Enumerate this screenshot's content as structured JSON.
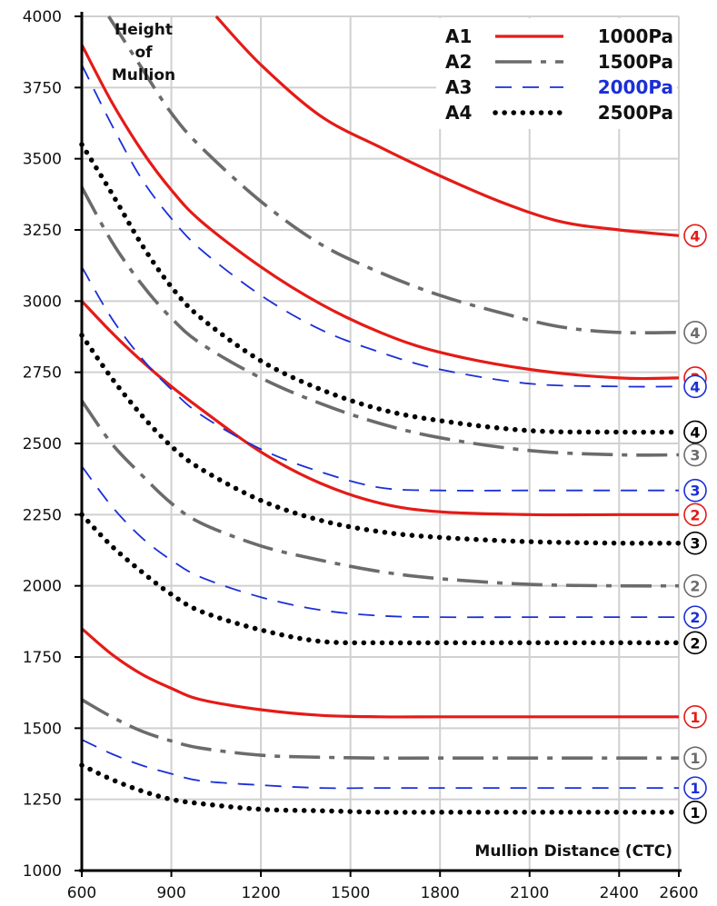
{
  "chart_data": {
    "type": "line",
    "xlabel": "Mullion Distance (CTC)",
    "ylabel_lines": [
      "Height",
      "of",
      "Mullion"
    ],
    "xlim": [
      600,
      2600
    ],
    "ylim": [
      1000,
      4000
    ],
    "x_ticks": [
      600,
      900,
      1200,
      1500,
      1800,
      2100,
      2400,
      2600
    ],
    "y_ticks": [
      1000,
      1250,
      1500,
      1750,
      2000,
      2250,
      2500,
      2750,
      3000,
      3250,
      3500,
      3750,
      4000
    ],
    "grid": true,
    "legend_position": "top-right",
    "legend": [
      {
        "name": "A1",
        "value": "1000Pa",
        "color": "#e41b17",
        "style": "solid"
      },
      {
        "name": "A2",
        "value": "1500Pa",
        "color": "#6b6b6b",
        "style": "dashdot"
      },
      {
        "name": "A3",
        "value": "2000Pa",
        "color": "#1a2fd6",
        "style": "dashed"
      },
      {
        "name": "A4",
        "value": "2500Pa",
        "color": "#000000",
        "style": "dotted"
      }
    ],
    "series": [
      {
        "group": "A1",
        "label": "1",
        "x": [
          600,
          700,
          800,
          900,
          1000,
          1200,
          1400,
          1600,
          1800,
          2100,
          2400,
          2600
        ],
        "y": [
          1850,
          1760,
          1690,
          1640,
          1600,
          1565,
          1545,
          1540,
          1540,
          1540,
          1540,
          1540
        ]
      },
      {
        "group": "A1",
        "label": "2",
        "x": [
          600,
          700,
          800,
          900,
          1000,
          1200,
          1400,
          1600,
          1800,
          2100,
          2400,
          2600
        ],
        "y": [
          3000,
          2890,
          2790,
          2700,
          2620,
          2470,
          2360,
          2290,
          2260,
          2250,
          2250,
          2250
        ]
      },
      {
        "group": "A1",
        "label": "3",
        "x": [
          600,
          700,
          800,
          900,
          1000,
          1200,
          1400,
          1600,
          1800,
          2100,
          2400,
          2600
        ],
        "y": [
          3900,
          3700,
          3530,
          3390,
          3280,
          3120,
          2990,
          2890,
          2820,
          2760,
          2730,
          2730
        ]
      },
      {
        "group": "A1",
        "label": "4",
        "x": [
          1050,
          1200,
          1400,
          1600,
          1800,
          2000,
          2200,
          2400,
          2600
        ],
        "y": [
          4000,
          3830,
          3650,
          3540,
          3440,
          3350,
          3280,
          3250,
          3230
        ]
      },
      {
        "group": "A2",
        "label": "1",
        "x": [
          600,
          700,
          800,
          900,
          1000,
          1200,
          1400,
          1600,
          1800,
          2100,
          2400,
          2600
        ],
        "y": [
          1600,
          1540,
          1490,
          1455,
          1430,
          1405,
          1398,
          1395,
          1395,
          1395,
          1395,
          1395
        ]
      },
      {
        "group": "A2",
        "label": "2",
        "x": [
          600,
          700,
          800,
          900,
          1000,
          1200,
          1400,
          1600,
          1800,
          2100,
          2400,
          2600
        ],
        "y": [
          2650,
          2500,
          2390,
          2290,
          2220,
          2140,
          2090,
          2050,
          2025,
          2005,
          2000,
          2000
        ]
      },
      {
        "group": "A2",
        "label": "3",
        "x": [
          600,
          700,
          800,
          900,
          1000,
          1200,
          1400,
          1600,
          1800,
          2100,
          2400,
          2600
        ],
        "y": [
          3400,
          3210,
          3060,
          2940,
          2850,
          2730,
          2640,
          2570,
          2520,
          2475,
          2460,
          2460
        ]
      },
      {
        "group": "A2",
        "label": "4",
        "x": [
          690,
          800,
          900,
          1000,
          1200,
          1400,
          1600,
          1800,
          2000,
          2200,
          2400,
          2600
        ],
        "y": [
          4000,
          3820,
          3660,
          3540,
          3350,
          3200,
          3100,
          3020,
          2960,
          2910,
          2890,
          2890
        ]
      },
      {
        "group": "A3",
        "label": "1",
        "x": [
          600,
          700,
          800,
          900,
          1000,
          1200,
          1400,
          1600,
          1800,
          2100,
          2400,
          2600
        ],
        "y": [
          1460,
          1410,
          1370,
          1340,
          1315,
          1300,
          1290,
          1290,
          1290,
          1290,
          1290,
          1290
        ]
      },
      {
        "group": "A3",
        "label": "2",
        "x": [
          600,
          700,
          800,
          900,
          1000,
          1200,
          1400,
          1600,
          1800,
          2100,
          2400,
          2600
        ],
        "y": [
          2420,
          2280,
          2170,
          2090,
          2030,
          1960,
          1915,
          1895,
          1890,
          1890,
          1890,
          1890
        ]
      },
      {
        "group": "A3",
        "label": "3",
        "x": [
          600,
          700,
          800,
          900,
          1000,
          1200,
          1400,
          1600,
          1800,
          2100,
          2400,
          2600
        ],
        "y": [
          3120,
          2940,
          2800,
          2690,
          2600,
          2480,
          2400,
          2345,
          2335,
          2335,
          2335,
          2335
        ]
      },
      {
        "group": "A3",
        "label": "4",
        "x": [
          600,
          700,
          800,
          900,
          1000,
          1200,
          1400,
          1600,
          1800,
          2100,
          2400,
          2600
        ],
        "y": [
          3830,
          3620,
          3430,
          3290,
          3180,
          3020,
          2900,
          2820,
          2760,
          2710,
          2700,
          2700
        ]
      },
      {
        "group": "A4",
        "label": "1",
        "x": [
          600,
          700,
          800,
          900,
          1000,
          1200,
          1400,
          1600,
          1800,
          2100,
          2400,
          2600
        ],
        "y": [
          1370,
          1320,
          1280,
          1250,
          1235,
          1215,
          1210,
          1205,
          1205,
          1205,
          1205,
          1205
        ]
      },
      {
        "group": "A4",
        "label": "2",
        "x": [
          600,
          700,
          800,
          900,
          1000,
          1200,
          1400,
          1600,
          1800,
          2100,
          2400,
          2600
        ],
        "y": [
          2250,
          2140,
          2050,
          1970,
          1910,
          1845,
          1805,
          1800,
          1800,
          1800,
          1800,
          1800
        ]
      },
      {
        "group": "A4",
        "label": "3",
        "x": [
          600,
          700,
          800,
          900,
          1000,
          1200,
          1400,
          1600,
          1800,
          2100,
          2400,
          2600
        ],
        "y": [
          2880,
          2730,
          2600,
          2490,
          2410,
          2300,
          2230,
          2190,
          2170,
          2155,
          2150,
          2150
        ]
      },
      {
        "group": "A4",
        "label": "4",
        "x": [
          600,
          700,
          800,
          900,
          1000,
          1200,
          1400,
          1600,
          1800,
          2100,
          2400,
          2600
        ],
        "y": [
          3550,
          3380,
          3200,
          3050,
          2940,
          2790,
          2690,
          2620,
          2580,
          2545,
          2540,
          2540
        ]
      }
    ]
  }
}
